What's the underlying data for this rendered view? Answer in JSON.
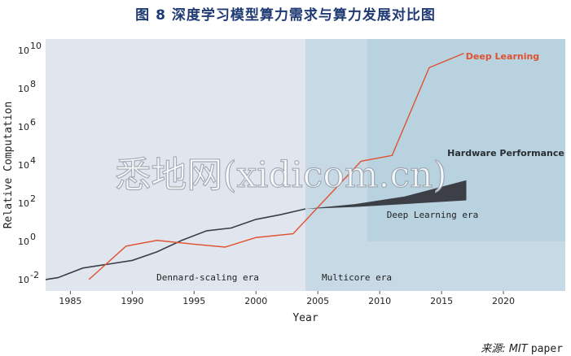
{
  "figure_title": "图 8 深度学习模型算力需求与算力发展对比图",
  "source": {
    "label": "来源:",
    "org": "MIT",
    "doc": "paper"
  },
  "watermark": "悉地网(xidicom.cn)",
  "colors": {
    "background_region": "#e1e5ee",
    "multicore_region": "#c6d9e5",
    "dl_region": "#b8d2e0",
    "hardware_line": "#3c3f46",
    "deep_learning_line": "#e0512f",
    "deep_learning_label": "#e0512f",
    "text": "#222222"
  },
  "chart_data": {
    "type": "line",
    "title": "",
    "xlabel": "Year",
    "ylabel": "Relative Computation",
    "xlim": [
      1983,
      2025
    ],
    "ylim_log10": [
      -2.6,
      10.6
    ],
    "yscale": "log",
    "x_ticks": [
      1985,
      1990,
      1995,
      2000,
      2005,
      2010,
      2015,
      2020
    ],
    "y_ticks": [
      {
        "base": "10",
        "exp": "-2",
        "log10": -2
      },
      {
        "base": "10",
        "exp": "0",
        "log10": 0
      },
      {
        "base": "10",
        "exp": "2",
        "log10": 2
      },
      {
        "base": "10",
        "exp": "4",
        "log10": 4
      },
      {
        "base": "10",
        "exp": "6",
        "log10": 6
      },
      {
        "base": "10",
        "exp": "8",
        "log10": 8
      },
      {
        "base": "10",
        "exp": "10",
        "log10": 10
      }
    ],
    "grid": false,
    "eras": [
      {
        "label": "Dennard-scaling era",
        "start": 1983,
        "end": 2004
      },
      {
        "label": "Multicore era",
        "start": 2004,
        "end": 2025
      },
      {
        "label": "Deep Learning era",
        "start": 2009,
        "end": 2025,
        "y_from_log10": 0,
        "y_to_log10": 10.6
      }
    ],
    "series": [
      {
        "name": "Hardware Performance",
        "x": [
          1983,
          1984,
          1986,
          1988,
          1990,
          1992,
          1994,
          1996,
          1998,
          2000,
          2002,
          2004
        ],
        "log10_values": [
          -2.0,
          -1.9,
          -1.4,
          -1.2,
          -1.0,
          -0.55,
          0.05,
          0.55,
          0.7,
          1.15,
          1.4,
          1.7
        ]
      },
      {
        "name": "Hardware Performance (projection band)",
        "x": [
          2004,
          2008,
          2012,
          2017
        ],
        "log10_upper": [
          1.7,
          1.95,
          2.35,
          3.2
        ],
        "log10_lower": [
          1.7,
          1.8,
          1.95,
          2.15
        ]
      },
      {
        "name": "Deep Learning",
        "x": [
          1986.5,
          1989.5,
          1992,
          1995,
          1997.5,
          2000,
          2003,
          2008.5,
          2011,
          2014,
          2016.8
        ],
        "log10_values": [
          -2.0,
          -0.25,
          0.05,
          -0.15,
          -0.3,
          0.2,
          0.4,
          4.2,
          4.5,
          9.1,
          9.85
        ]
      }
    ]
  }
}
